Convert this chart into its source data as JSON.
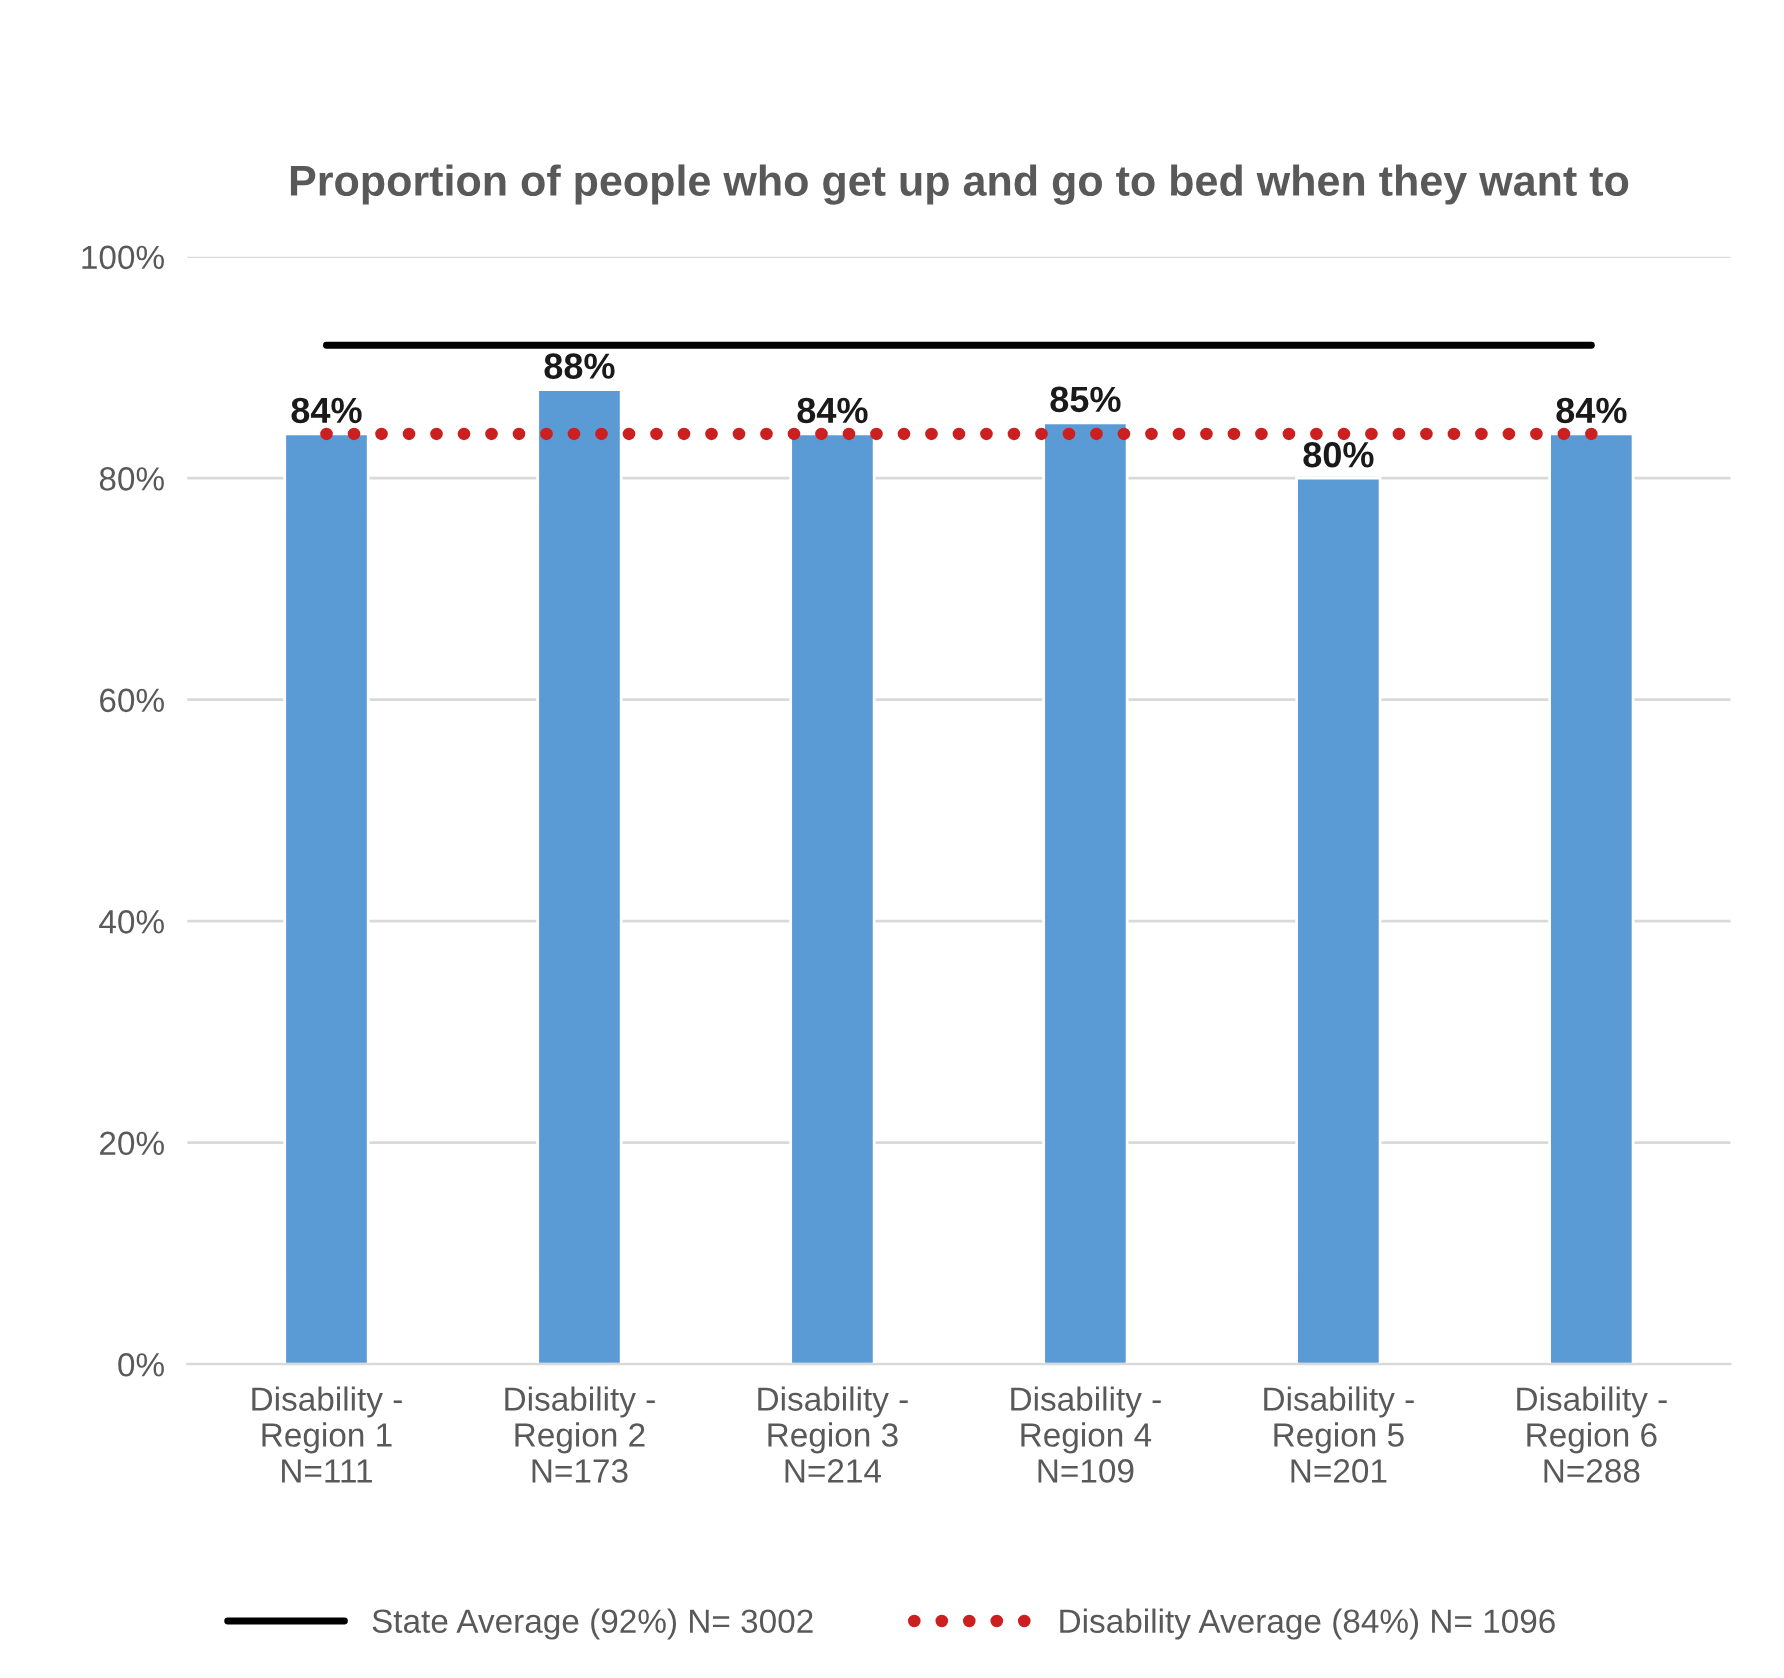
{
  "chart_data": {
    "type": "bar",
    "title": "Proportion of people who get up and go to bed when they want to",
    "categories": [
      "Disability -\nRegion 1\nN=111",
      "Disability -\nRegion 2\nN=173",
      "Disability -\nRegion 3\nN=214",
      "Disability -\nRegion 4\nN=109",
      "Disability -\nRegion 5\nN=201",
      "Disability -\nRegion 6\nN=288"
    ],
    "series": [
      {
        "color": "#5b9bd5",
        "values": [
          84,
          88,
          84,
          85,
          80,
          84
        ],
        "value_labels": [
          "84%",
          "88%",
          "84%",
          "85%",
          "80%",
          "84%"
        ]
      },
      {
        "type": "line",
        "name": "State Average (92%) N= 3002",
        "color": "#000000",
        "line_style": "solid",
        "values": [
          92,
          92,
          92,
          92,
          92,
          92
        ]
      },
      {
        "type": "line",
        "name": "Disability Average (84%) N= 1096",
        "color": "#cc1f1f",
        "line_style": "dotted",
        "values": [
          84,
          84,
          84,
          84,
          84,
          84
        ]
      }
    ],
    "ylim": [
      0,
      100
    ],
    "yticks": [
      {
        "value": 0,
        "label": "0%"
      },
      {
        "value": 20,
        "label": "20%"
      },
      {
        "value": 40,
        "label": "40%"
      },
      {
        "value": 60,
        "label": "60%"
      },
      {
        "value": 80,
        "label": "80%"
      },
      {
        "value": 100,
        "label": "100%"
      }
    ],
    "grid": "y",
    "legend": "bottom"
  }
}
